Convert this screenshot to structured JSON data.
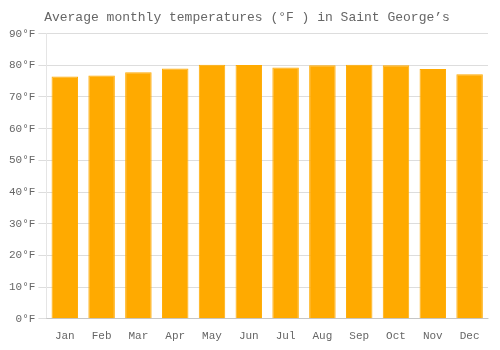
{
  "chart_data": {
    "type": "bar",
    "title": "Average monthly temperatures (°F ) in Saint George’s",
    "categories": [
      "Jan",
      "Feb",
      "Mar",
      "Apr",
      "May",
      "Jun",
      "Jul",
      "Aug",
      "Sep",
      "Oct",
      "Nov",
      "Dec"
    ],
    "values": [
      76.5,
      76.8,
      77.8,
      79.0,
      80.2,
      80.1,
      79.3,
      80.0,
      80.2,
      80.0,
      78.8,
      77.2
    ],
    "color": "#FFAA00",
    "ylim": [
      0,
      90
    ],
    "yticks": [
      {
        "value": 0,
        "label": "0°F"
      },
      {
        "value": 10,
        "label": "10°F"
      },
      {
        "value": 20,
        "label": "20°F"
      },
      {
        "value": 30,
        "label": "30°F"
      },
      {
        "value": 40,
        "label": "40°F"
      },
      {
        "value": 50,
        "label": "50°F"
      },
      {
        "value": 60,
        "label": "60°F"
      },
      {
        "value": 70,
        "label": "70°F"
      },
      {
        "value": 80,
        "label": "80°F"
      },
      {
        "value": 90,
        "label": "90°F"
      }
    ],
    "grid": true
  }
}
